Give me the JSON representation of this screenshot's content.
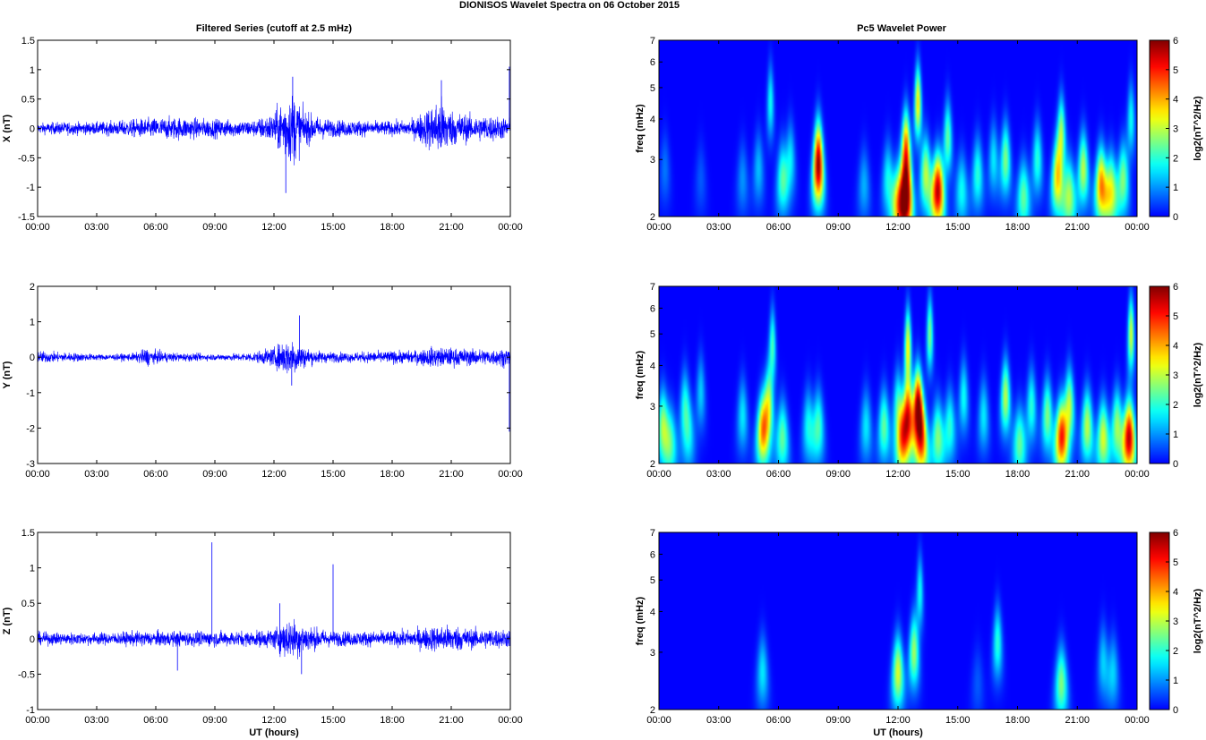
{
  "figure": {
    "title": "DIONISOS Wavelet Spectra on 06 October   2015",
    "left_title": "Filtered Series (cutoff at 2.5 mHz)",
    "right_title": "Pc5 Wavelet Power"
  },
  "chart_data": [
    {
      "type": "line",
      "component": "X",
      "ylabel": "X (nT)",
      "xlabel": "",
      "xlim": [
        0,
        24
      ],
      "ylim": [
        -1.5,
        1.5
      ],
      "yticks": [
        "-1.5",
        "-1",
        "-0.5",
        "0",
        "0.5",
        "1",
        "1.5"
      ],
      "ytick_values": [
        -1.5,
        -1,
        -0.5,
        0,
        0.5,
        1,
        1.5
      ],
      "xticks": [
        "00:00",
        "03:00",
        "06:00",
        "09:00",
        "12:00",
        "15:00",
        "18:00",
        "21:00",
        "00:00"
      ],
      "line_color": "#0000ff",
      "series_envelope": {
        "hours": [
          0,
          1,
          2,
          3,
          4,
          5,
          6,
          7,
          8,
          9,
          10,
          11,
          12,
          12.5,
          13,
          13.5,
          14,
          15,
          16,
          17,
          18,
          19,
          20,
          20.5,
          21,
          22,
          23,
          24
        ],
        "amplitude": [
          0.1,
          0.12,
          0.12,
          0.12,
          0.14,
          0.18,
          0.2,
          0.22,
          0.2,
          0.18,
          0.16,
          0.16,
          0.3,
          0.6,
          0.7,
          0.35,
          0.25,
          0.16,
          0.16,
          0.14,
          0.14,
          0.16,
          0.45,
          0.6,
          0.35,
          0.25,
          0.25,
          0.2
        ]
      },
      "spikes": [
        {
          "x": 12.6,
          "y": -1.1
        },
        {
          "x": 12.95,
          "y": 0.88
        },
        {
          "x": 20.5,
          "y": 0.82
        },
        {
          "x": 23.95,
          "y": 1.05
        }
      ]
    },
    {
      "type": "line",
      "component": "Y",
      "ylabel": "Y (nT)",
      "xlabel": "",
      "xlim": [
        0,
        24
      ],
      "ylim": [
        -3,
        2
      ],
      "yticks": [
        "-3",
        "-2",
        "-1",
        "0",
        "1",
        "2"
      ],
      "ytick_values": [
        -3,
        -2,
        -1,
        0,
        1,
        2
      ],
      "xticks": [
        "00:00",
        "03:00",
        "06:00",
        "09:00",
        "12:00",
        "15:00",
        "18:00",
        "21:00",
        "00:00"
      ],
      "line_color": "#0000ff",
      "series_envelope": {
        "hours": [
          0,
          1,
          2,
          3,
          4,
          5,
          5.5,
          6,
          7,
          8,
          9,
          10,
          11,
          12,
          12.5,
          13,
          13.5,
          14,
          15,
          16,
          17,
          18,
          19,
          20,
          21,
          22,
          23,
          24
        ],
        "amplitude": [
          0.2,
          0.16,
          0.14,
          0.1,
          0.1,
          0.14,
          0.3,
          0.2,
          0.14,
          0.12,
          0.1,
          0.12,
          0.16,
          0.3,
          0.55,
          0.6,
          0.35,
          0.22,
          0.16,
          0.16,
          0.18,
          0.2,
          0.2,
          0.32,
          0.3,
          0.26,
          0.26,
          0.3
        ]
      },
      "spikes": [
        {
          "x": 13.3,
          "y": 1.18
        },
        {
          "x": 12.9,
          "y": -0.8
        },
        {
          "x": 23.95,
          "y": -2.1
        }
      ]
    },
    {
      "type": "line",
      "component": "Z",
      "ylabel": "Z (nT)",
      "xlabel": "UT (hours)",
      "xlim": [
        0,
        24
      ],
      "ylim": [
        -1,
        1.5
      ],
      "yticks": [
        "-1",
        "-0.5",
        "0",
        "0.5",
        "1",
        "1.5"
      ],
      "ytick_values": [
        -1,
        -0.5,
        0,
        0.5,
        1,
        1.5
      ],
      "xticks": [
        "00:00",
        "03:00",
        "06:00",
        "09:00",
        "12:00",
        "15:00",
        "18:00",
        "21:00",
        "00:00"
      ],
      "line_color": "#0000ff",
      "series_envelope": {
        "hours": [
          0,
          1,
          2,
          3,
          4,
          5,
          6,
          7,
          8,
          9,
          10,
          11,
          12,
          12.5,
          13,
          13.5,
          14,
          15,
          16,
          17,
          18,
          19,
          20,
          21,
          22,
          23,
          24
        ],
        "amplitude": [
          0.1,
          0.1,
          0.1,
          0.1,
          0.1,
          0.12,
          0.12,
          0.12,
          0.12,
          0.12,
          0.12,
          0.12,
          0.16,
          0.3,
          0.32,
          0.25,
          0.18,
          0.12,
          0.12,
          0.12,
          0.12,
          0.14,
          0.2,
          0.22,
          0.16,
          0.16,
          0.14
        ]
      },
      "spikes": [
        {
          "x": 8.85,
          "y": 1.36
        },
        {
          "x": 15.0,
          "y": 1.05
        },
        {
          "x": 7.1,
          "y": -0.45
        },
        {
          "x": 13.4,
          "y": -0.5
        },
        {
          "x": 12.3,
          "y": 0.5
        }
      ]
    },
    {
      "type": "heatmap",
      "component": "X",
      "ylabel": "freq (mHz)",
      "xlabel": "",
      "yscale": "log",
      "xlim": [
        0,
        24
      ],
      "ylim": [
        2,
        7
      ],
      "yticks": [
        "2",
        "3",
        "4",
        "5",
        "6",
        "7"
      ],
      "ytick_values": [
        2,
        3,
        4,
        5,
        6,
        7
      ],
      "xticks": [
        "00:00",
        "03:00",
        "06:00",
        "09:00",
        "12:00",
        "15:00",
        "18:00",
        "21:00",
        "00:00"
      ],
      "colorbar": {
        "label": "log2(nT^2/Hz)",
        "ticks": [
          "0",
          "1",
          "2",
          "3",
          "4",
          "5",
          "6"
        ],
        "range": [
          0,
          6
        ]
      },
      "blobs": [
        {
          "t": 0.3,
          "f": 2.8,
          "p": 0.8
        },
        {
          "t": 2.1,
          "f": 2.6,
          "p": 0.6
        },
        {
          "t": 4.2,
          "f": 2.6,
          "p": 1.0
        },
        {
          "t": 5.0,
          "f": 2.8,
          "p": 1.3
        },
        {
          "t": 5.6,
          "f": 4.5,
          "p": 1.8
        },
        {
          "t": 6.2,
          "f": 2.6,
          "p": 2.2
        },
        {
          "t": 6.6,
          "f": 3.0,
          "p": 1.6
        },
        {
          "t": 8.0,
          "f": 2.7,
          "p": 3.8
        },
        {
          "t": 8.0,
          "f": 3.2,
          "p": 2.8
        },
        {
          "t": 10.3,
          "f": 2.5,
          "p": 1.2
        },
        {
          "t": 11.5,
          "f": 2.6,
          "p": 1.8
        },
        {
          "t": 12.0,
          "f": 2.2,
          "p": 3.0
        },
        {
          "t": 12.4,
          "f": 2.3,
          "p": 6.0
        },
        {
          "t": 12.4,
          "f": 3.3,
          "p": 4.0
        },
        {
          "t": 13.0,
          "f": 4.5,
          "p": 3.6
        },
        {
          "t": 13.4,
          "f": 2.7,
          "p": 3.0
        },
        {
          "t": 14.0,
          "f": 2.4,
          "p": 5.6
        },
        {
          "t": 14.5,
          "f": 3.5,
          "p": 2.4
        },
        {
          "t": 15.2,
          "f": 2.4,
          "p": 1.8
        },
        {
          "t": 16.0,
          "f": 2.7,
          "p": 2.0
        },
        {
          "t": 16.8,
          "f": 3.0,
          "p": 1.6
        },
        {
          "t": 17.4,
          "f": 3.0,
          "p": 2.6
        },
        {
          "t": 18.3,
          "f": 2.3,
          "p": 2.4
        },
        {
          "t": 19.0,
          "f": 3.0,
          "p": 2.0
        },
        {
          "t": 20.0,
          "f": 2.6,
          "p": 3.5
        },
        {
          "t": 20.2,
          "f": 3.6,
          "p": 2.8
        },
        {
          "t": 20.6,
          "f": 2.3,
          "p": 2.8
        },
        {
          "t": 21.3,
          "f": 2.8,
          "p": 3.0
        },
        {
          "t": 22.2,
          "f": 2.5,
          "p": 4.2
        },
        {
          "t": 22.7,
          "f": 2.4,
          "p": 3.2
        },
        {
          "t": 23.3,
          "f": 2.6,
          "p": 2.6
        },
        {
          "t": 23.7,
          "f": 4.0,
          "p": 1.8
        }
      ]
    },
    {
      "type": "heatmap",
      "component": "Y",
      "ylabel": "freq (mHz)",
      "xlabel": "",
      "yscale": "log",
      "xlim": [
        0,
        24
      ],
      "ylim": [
        2,
        7
      ],
      "yticks": [
        "2",
        "3",
        "4",
        "5",
        "6",
        "7"
      ],
      "ytick_values": [
        2,
        3,
        4,
        5,
        6,
        7
      ],
      "xticks": [
        "00:00",
        "03:00",
        "06:00",
        "09:00",
        "12:00",
        "15:00",
        "18:00",
        "21:00",
        "00:00"
      ],
      "colorbar": {
        "label": "log2(nT^2/Hz)",
        "ticks": [
          "0",
          "1",
          "2",
          "3",
          "4",
          "5",
          "6"
        ],
        "range": [
          0,
          6
        ]
      },
      "blobs": [
        {
          "t": 0.2,
          "f": 2.6,
          "p": 2.8
        },
        {
          "t": 0.6,
          "f": 2.3,
          "p": 2.0
        },
        {
          "t": 1.3,
          "f": 3.0,
          "p": 1.8
        },
        {
          "t": 1.5,
          "f": 2.4,
          "p": 1.4
        },
        {
          "t": 2.1,
          "f": 3.3,
          "p": 1.4
        },
        {
          "t": 4.2,
          "f": 2.8,
          "p": 1.6
        },
        {
          "t": 5.2,
          "f": 2.5,
          "p": 3.8
        },
        {
          "t": 5.5,
          "f": 3.0,
          "p": 3.0
        },
        {
          "t": 5.7,
          "f": 4.6,
          "p": 2.2
        },
        {
          "t": 6.2,
          "f": 2.4,
          "p": 2.4
        },
        {
          "t": 7.5,
          "f": 2.6,
          "p": 1.8
        },
        {
          "t": 8.0,
          "f": 2.6,
          "p": 2.2
        },
        {
          "t": 10.4,
          "f": 2.6,
          "p": 1.6
        },
        {
          "t": 11.3,
          "f": 2.6,
          "p": 2.4
        },
        {
          "t": 12.0,
          "f": 3.0,
          "p": 2.0
        },
        {
          "t": 12.2,
          "f": 2.3,
          "p": 3.2
        },
        {
          "t": 12.5,
          "f": 2.8,
          "p": 4.8
        },
        {
          "t": 12.5,
          "f": 4.6,
          "p": 3.4
        },
        {
          "t": 13.0,
          "f": 3.0,
          "p": 5.8
        },
        {
          "t": 13.2,
          "f": 2.3,
          "p": 3.8
        },
        {
          "t": 13.6,
          "f": 5.0,
          "p": 2.6
        },
        {
          "t": 14.0,
          "f": 2.4,
          "p": 2.6
        },
        {
          "t": 14.6,
          "f": 2.6,
          "p": 2.0
        },
        {
          "t": 15.3,
          "f": 3.2,
          "p": 1.8
        },
        {
          "t": 16.3,
          "f": 2.8,
          "p": 1.6
        },
        {
          "t": 17.4,
          "f": 3.2,
          "p": 3.0
        },
        {
          "t": 18.1,
          "f": 2.3,
          "p": 2.4
        },
        {
          "t": 18.7,
          "f": 3.0,
          "p": 2.0
        },
        {
          "t": 19.5,
          "f": 2.8,
          "p": 2.6
        },
        {
          "t": 20.2,
          "f": 2.4,
          "p": 4.8
        },
        {
          "t": 20.6,
          "f": 3.0,
          "p": 3.0
        },
        {
          "t": 21.5,
          "f": 2.6,
          "p": 3.0
        },
        {
          "t": 22.3,
          "f": 2.4,
          "p": 3.2
        },
        {
          "t": 23.0,
          "f": 2.6,
          "p": 2.8
        },
        {
          "t": 23.6,
          "f": 2.4,
          "p": 5.6
        },
        {
          "t": 23.7,
          "f": 5.0,
          "p": 3.2
        }
      ]
    },
    {
      "type": "heatmap",
      "component": "Z",
      "ylabel": "freq (mHz)",
      "xlabel": "UT (hours)",
      "yscale": "log",
      "xlim": [
        0,
        24
      ],
      "ylim": [
        2,
        7
      ],
      "yticks": [
        "2",
        "3",
        "4",
        "5",
        "6",
        "7"
      ],
      "ytick_values": [
        2,
        3,
        4,
        5,
        6,
        7
      ],
      "xticks": [
        "00:00",
        "03:00",
        "06:00",
        "09:00",
        "12:00",
        "15:00",
        "18:00",
        "21:00",
        "00:00"
      ],
      "colorbar": {
        "label": "log2(nT^2/Hz)",
        "ticks": [
          "0",
          "1",
          "2",
          "3",
          "4",
          "5",
          "6"
        ],
        "range": [
          0,
          6
        ]
      },
      "blobs": [
        {
          "t": 5.2,
          "f": 2.6,
          "p": 1.6
        },
        {
          "t": 12.0,
          "f": 2.6,
          "p": 3.2
        },
        {
          "t": 12.8,
          "f": 3.0,
          "p": 2.8
        },
        {
          "t": 13.1,
          "f": 4.6,
          "p": 1.8
        },
        {
          "t": 16.0,
          "f": 2.4,
          "p": 0.6
        },
        {
          "t": 17.0,
          "f": 3.2,
          "p": 2.0
        },
        {
          "t": 20.2,
          "f": 2.4,
          "p": 2.6
        },
        {
          "t": 22.3,
          "f": 2.8,
          "p": 1.4
        },
        {
          "t": 22.8,
          "f": 2.6,
          "p": 1.4
        }
      ]
    }
  ]
}
